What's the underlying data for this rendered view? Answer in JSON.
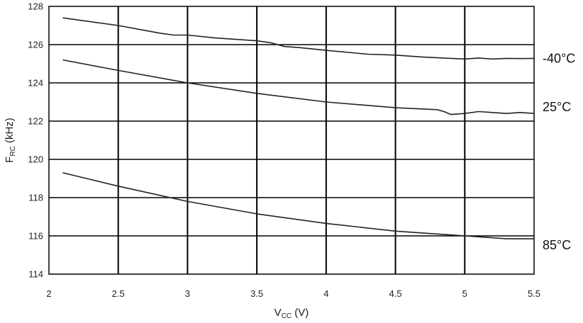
{
  "chart_data": {
    "type": "line",
    "title": "",
    "xlabel": {
      "main": "V",
      "sub": "CC",
      "unit": " (V)"
    },
    "ylabel": {
      "main": "F",
      "sub": "RC",
      "unit": " (kHz)"
    },
    "xlim": [
      2,
      5.5
    ],
    "ylim": [
      114,
      128
    ],
    "xticks": [
      "2",
      "2.5",
      "3",
      "3.5",
      "4",
      "4.5",
      "5",
      "5.5"
    ],
    "yticks": [
      "114",
      "116",
      "118",
      "120",
      "122",
      "124",
      "126",
      "128"
    ],
    "xtick_values": [
      2,
      2.5,
      3,
      3.5,
      4,
      4.5,
      5,
      5.5
    ],
    "ytick_values": [
      114,
      116,
      118,
      120,
      122,
      124,
      126,
      128
    ],
    "grid": true,
    "legend": "right-of-plot inline labels",
    "series": [
      {
        "name": "-40°C",
        "x": [
          2.1,
          2.5,
          2.8,
          2.9,
          3.0,
          3.2,
          3.5,
          3.6,
          3.65,
          3.7,
          3.8,
          4.0,
          4.3,
          4.5,
          4.7,
          4.9,
          5.0,
          5.1,
          5.2,
          5.3,
          5.4,
          5.5
        ],
        "y": [
          127.4,
          127.0,
          126.6,
          126.5,
          126.5,
          126.35,
          126.2,
          126.1,
          126.0,
          125.9,
          125.85,
          125.7,
          125.5,
          125.45,
          125.35,
          125.28,
          125.25,
          125.3,
          125.25,
          125.28,
          125.27,
          125.28
        ]
      },
      {
        "name": "25°C",
        "x": [
          2.1,
          2.5,
          3.0,
          3.5,
          4.0,
          4.5,
          4.8,
          4.85,
          4.9,
          5.0,
          5.1,
          5.2,
          5.3,
          5.4,
          5.5
        ],
        "y": [
          125.2,
          124.65,
          124.0,
          123.45,
          123.0,
          122.7,
          122.6,
          122.5,
          122.35,
          122.4,
          122.5,
          122.45,
          122.4,
          122.45,
          122.4
        ]
      },
      {
        "name": "85°C",
        "x": [
          2.1,
          2.5,
          3.0,
          3.5,
          4.0,
          4.5,
          5.0,
          5.1,
          5.2,
          5.3,
          5.4,
          5.5
        ],
        "y": [
          119.3,
          118.6,
          117.8,
          117.15,
          116.65,
          116.25,
          116.0,
          115.95,
          115.9,
          115.85,
          115.85,
          115.85
        ]
      }
    ],
    "colors": {
      "line": "#222222",
      "grid": "#000000"
    }
  }
}
